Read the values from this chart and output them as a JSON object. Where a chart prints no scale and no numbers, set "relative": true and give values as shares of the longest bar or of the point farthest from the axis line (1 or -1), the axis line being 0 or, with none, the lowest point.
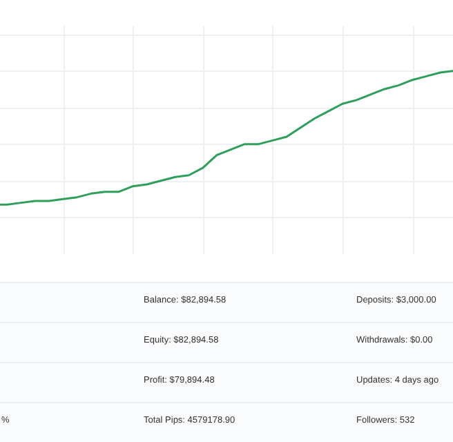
{
  "chart_data": {
    "type": "line",
    "relative": true,
    "grid": true,
    "categories": [
      null,
      null,
      null,
      null,
      null,
      null,
      null,
      null,
      null,
      null,
      null,
      null,
      null,
      null,
      null,
      null,
      null,
      null,
      null,
      null,
      null,
      null,
      null,
      null,
      null,
      null,
      null,
      null,
      null,
      null,
      null,
      null,
      null,
      null
    ],
    "series": [
      {
        "color": "#2e9e5b",
        "values": [
          0.27,
          0.27,
          0.28,
          0.29,
          0.29,
          0.3,
          0.31,
          0.33,
          0.34,
          0.34,
          0.37,
          0.38,
          0.4,
          0.42,
          0.43,
          0.47,
          0.54,
          0.57,
          0.6,
          0.6,
          0.62,
          0.64,
          0.69,
          0.74,
          0.78,
          0.82,
          0.84,
          0.87,
          0.9,
          0.92,
          0.95,
          0.97,
          0.99,
          1
        ]
      }
    ],
    "annotations": [
      "%",
      "Balance: $82,894.58",
      "Deposits: $3,000.00",
      "Equity: $82,894.58",
      "Withdrawals: $0.00",
      "Profit: $79,894.48",
      "Updates: 4 days ago",
      "Total Pips: 4579178.90",
      "Followers: 532"
    ]
  }
}
